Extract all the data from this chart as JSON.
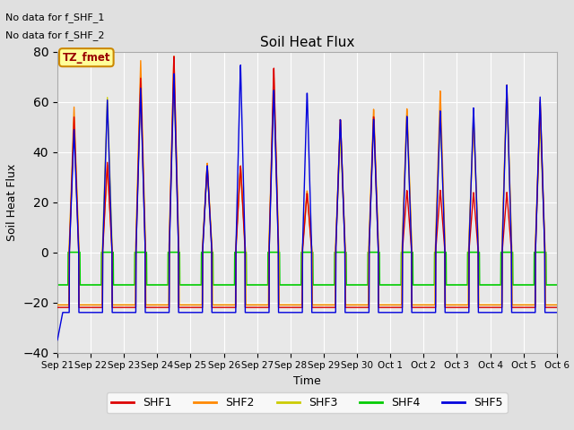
{
  "title": "Soil Heat Flux",
  "xlabel": "Time",
  "ylabel": "Soil Heat Flux",
  "ylim": [
    -40,
    80
  ],
  "yticks": [
    -40,
    -20,
    0,
    20,
    40,
    60,
    80
  ],
  "annotation_lines": [
    "No data for f_SHF_1",
    "No data for f_SHF_2"
  ],
  "legend_labels": [
    "SHF1",
    "SHF2",
    "SHF3",
    "SHF4",
    "SHF5"
  ],
  "legend_colors": [
    "#dd0000",
    "#ff8800",
    "#cccc00",
    "#00cc00",
    "#0000dd"
  ],
  "tz_label": "TZ_fmet",
  "tz_box_color": "#ffff99",
  "tz_border_color": "#cc8800",
  "tz_text_color": "#990000",
  "background_color": "#e0e0e0",
  "plot_bg_color": "#e8e8e8",
  "grid_color": "#ffffff",
  "figsize": [
    6.4,
    4.8
  ],
  "dpi": 100,
  "num_days": 15,
  "xtick_labels": [
    "Sep 21",
    "Sep 22",
    "Sep 23",
    "Sep 24",
    "Sep 25",
    "Sep 26",
    "Sep 27",
    "Sep 28",
    "Sep 29",
    "Sep 30",
    "Oct 1",
    "Oct 2",
    "Oct 3",
    "Oct 4",
    "Oct 5",
    "Oct 6"
  ],
  "day_peaks_shf1": [
    54,
    36,
    70,
    79,
    35,
    35,
    75,
    24,
    54,
    55,
    25,
    25,
    24,
    24,
    60
  ],
  "day_peaks_shf2": [
    58,
    35,
    77,
    79,
    36,
    35,
    71,
    25,
    54,
    58,
    58,
    65,
    53,
    67,
    61
  ],
  "day_peaks_shf3": [
    52,
    62,
    67,
    70,
    34,
    35,
    66,
    24,
    47,
    55,
    56,
    55,
    55,
    65,
    52
  ],
  "day_peaks_shf4": [
    -13,
    -13,
    -13,
    -13,
    -13,
    -13,
    -13,
    -13,
    -13,
    -13,
    -13,
    -13,
    -13,
    -13,
    -13
  ],
  "day_peaks_shf5": [
    49,
    61,
    66,
    72,
    35,
    76,
    66,
    65,
    54,
    54,
    55,
    57,
    58,
    67,
    62
  ],
  "night_val_shf1": -22,
  "night_val_shf2": -21,
  "night_val_shf3": -21,
  "night_val_shf5": -24
}
